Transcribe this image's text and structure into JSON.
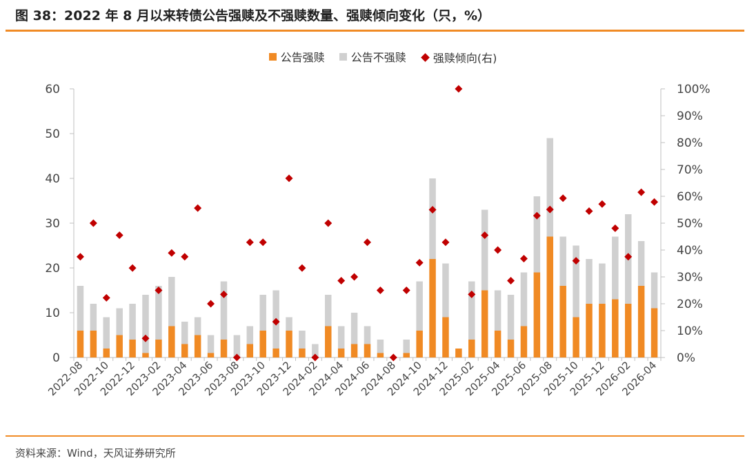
{
  "title": "图 38：2022 年 8 月以来转债公告强赎及不强赎数量、强赎倾向变化（只，%）",
  "source": "资料来源：Wind，天风证券研究所",
  "colors": {
    "redeem": "#f08a24",
    "not_redeem": "#d0d0d0",
    "tendency": "#c00000",
    "accent_rule": "#f08a24"
  },
  "chart_data": {
    "type": "bar",
    "stacked": true,
    "legend_position": "top-center",
    "grid": false,
    "categories": [
      "2022-08",
      "2022-09",
      "2022-10",
      "2022-11",
      "2022-12",
      "2023-01",
      "2023-02",
      "2023-03",
      "2023-04",
      "2023-05",
      "2023-06",
      "2023-07",
      "2023-08",
      "2023-09",
      "2023-10",
      "2023-11",
      "2023-12",
      "2024-01",
      "2024-02",
      "2024-03",
      "2024-04",
      "2024-05",
      "2024-06",
      "2024-07",
      "2024-08",
      "2024-09",
      "2024-10",
      "2024-11",
      "2024-12",
      "2025-01",
      "2025-02",
      "2025-03",
      "2025-04",
      "2025-05",
      "2025-06",
      "2025-07",
      "2025-08",
      "2025-09",
      "2025-10",
      "2025-11",
      "2025-12",
      "2026-01",
      "2026-02",
      "2026-03",
      "2026-04"
    ],
    "x_tick_labels": [
      "2022-08",
      "2022-10",
      "2022-12",
      "2023-02",
      "2023-04",
      "2023-06",
      "2023-08",
      "2023-10",
      "2023-12",
      "2024-02",
      "2024-04",
      "2024-06",
      "2024-08",
      "2024-10",
      "2024-12",
      "2025-02",
      "2025-04",
      "2025-06",
      "2025-08",
      "2025-10",
      "2025-12",
      "2026-02",
      "2026-04"
    ],
    "series": [
      {
        "name": "公告强赎",
        "kind": "bar",
        "axis": "left",
        "values": [
          6,
          6,
          2,
          5,
          4,
          1,
          4,
          7,
          3,
          5,
          1,
          4,
          0,
          3,
          6,
          2,
          6,
          2,
          0,
          7,
          2,
          3,
          3,
          1,
          0,
          1,
          6,
          22,
          9,
          2,
          4,
          15,
          6,
          4,
          7,
          19,
          27,
          16,
          9,
          12,
          12,
          13,
          12,
          16,
          11
        ]
      },
      {
        "name": "公告不强赎",
        "kind": "bar",
        "axis": "left",
        "values": [
          10,
          6,
          7,
          6,
          8,
          13,
          12,
          11,
          5,
          4,
          4,
          13,
          5,
          4,
          8,
          13,
          3,
          4,
          3,
          7,
          5,
          7,
          4,
          3,
          0,
          3,
          11,
          18,
          12,
          0,
          13,
          18,
          9,
          10,
          12,
          17,
          22,
          11,
          16,
          10,
          9,
          14,
          20,
          10,
          8
        ]
      },
      {
        "name": "强赎倾向(右)",
        "kind": "scatter",
        "axis": "right",
        "values": [
          37.5,
          50.0,
          22.2,
          45.5,
          33.3,
          7.1,
          25.0,
          38.9,
          37.5,
          55.6,
          20.0,
          23.5,
          0.0,
          42.9,
          42.9,
          13.3,
          66.7,
          33.3,
          0.0,
          50.0,
          28.6,
          30.0,
          42.9,
          25.0,
          0.0,
          25.0,
          35.3,
          55.0,
          42.9,
          100.0,
          23.5,
          45.5,
          40.0,
          28.6,
          36.8,
          52.8,
          55.1,
          59.3,
          36.0,
          54.5,
          57.1,
          48.1,
          37.5,
          61.5,
          57.9
        ]
      }
    ],
    "y_left": {
      "ylim": [
        0,
        60
      ],
      "ticks": [
        "0",
        "10",
        "20",
        "30",
        "40",
        "50",
        "60"
      ]
    },
    "y_right": {
      "ylim": [
        0,
        100
      ],
      "ticks": [
        "0%",
        "10%",
        "20%",
        "30%",
        "40%",
        "50%",
        "60%",
        "70%",
        "80%",
        "90%",
        "100%"
      ]
    }
  }
}
